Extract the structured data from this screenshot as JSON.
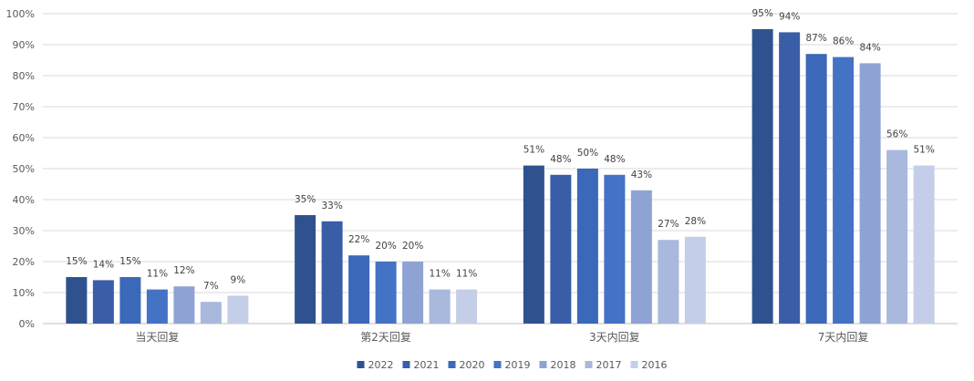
{
  "chart_data": {
    "type": "bar",
    "categories": [
      "当天回复",
      "第2天回复",
      "3天内回复",
      "7天内回复"
    ],
    "series": [
      {
        "name": "2022",
        "color": "#2f528f",
        "values": [
          15,
          35,
          51,
          95
        ],
        "labels": [
          "15%",
          "35%",
          "51%",
          "95%"
        ]
      },
      {
        "name": "2021",
        "color": "#3a5da8",
        "values": [
          14,
          33,
          48,
          94
        ],
        "labels": [
          "14%",
          "33%",
          "48%",
          "94%"
        ]
      },
      {
        "name": "2020",
        "color": "#3b68b8",
        "values": [
          15,
          22,
          50,
          87
        ],
        "labels": [
          "15%",
          "22%",
          "50%",
          "87%"
        ]
      },
      {
        "name": "2019",
        "color": "#4472c4",
        "values": [
          11,
          20,
          48,
          86
        ],
        "labels": [
          "11%",
          "20%",
          "48%",
          "86%"
        ]
      },
      {
        "name": "2018",
        "color": "#8ea3d4",
        "values": [
          12,
          20,
          43,
          84
        ],
        "labels": [
          "12%",
          "20%",
          "43%",
          "84%"
        ]
      },
      {
        "name": "2017",
        "color": "#a9b8dd",
        "values": [
          7,
          11,
          27,
          56
        ],
        "labels": [
          "7%",
          "11%",
          "27%",
          "56%"
        ]
      },
      {
        "name": "2016",
        "color": "#c5cee8",
        "values": [
          9,
          11,
          28,
          51
        ],
        "labels": [
          "9%",
          "11%",
          "28%",
          "51%"
        ]
      }
    ],
    "y_ticks": [
      "0%",
      "10%",
      "20%",
      "30%",
      "40%",
      "50%",
      "60%",
      "70%",
      "80%",
      "90%",
      "100%"
    ],
    "ylim": [
      0,
      100
    ],
    "grid": true,
    "legend_position": "bottom",
    "title": "",
    "xlabel": "",
    "ylabel": ""
  }
}
